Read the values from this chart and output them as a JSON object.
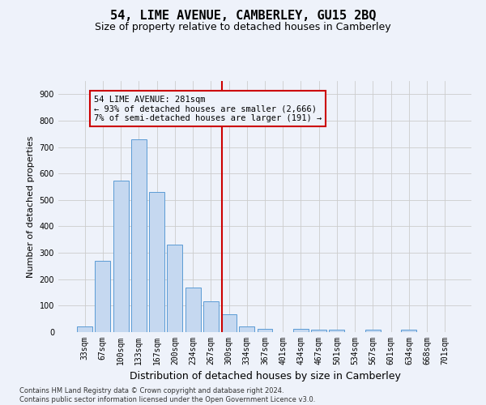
{
  "title": "54, LIME AVENUE, CAMBERLEY, GU15 2BQ",
  "subtitle": "Size of property relative to detached houses in Camberley",
  "xlabel": "Distribution of detached houses by size in Camberley",
  "ylabel": "Number of detached properties",
  "categories": [
    "33sqm",
    "67sqm",
    "100sqm",
    "133sqm",
    "167sqm",
    "200sqm",
    "234sqm",
    "267sqm",
    "300sqm",
    "334sqm",
    "367sqm",
    "401sqm",
    "434sqm",
    "467sqm",
    "501sqm",
    "534sqm",
    "567sqm",
    "601sqm",
    "634sqm",
    "668sqm",
    "701sqm"
  ],
  "values": [
    22,
    270,
    572,
    730,
    530,
    330,
    168,
    115,
    68,
    20,
    12,
    0,
    12,
    8,
    8,
    0,
    8,
    0,
    8,
    0,
    0
  ],
  "bar_color": "#c5d8f0",
  "bar_edge_color": "#5b9bd5",
  "background_color": "#eef2fa",
  "grid_color": "#cccccc",
  "vline_x": 7.6,
  "vline_color": "#cc0000",
  "annotation_lines": [
    "54 LIME AVENUE: 281sqm",
    "← 93% of detached houses are smaller (2,666)",
    "7% of semi-detached houses are larger (191) →"
  ],
  "annotation_box_color": "#cc0000",
  "footer_lines": [
    "Contains HM Land Registry data © Crown copyright and database right 2024.",
    "Contains public sector information licensed under the Open Government Licence v3.0."
  ],
  "ylim": [
    0,
    950
  ],
  "yticks": [
    0,
    100,
    200,
    300,
    400,
    500,
    600,
    700,
    800,
    900
  ],
  "title_fontsize": 11,
  "subtitle_fontsize": 9,
  "xlabel_fontsize": 9,
  "ylabel_fontsize": 8,
  "tick_fontsize": 7,
  "annotation_fontsize": 7.5,
  "footer_fontsize": 6
}
